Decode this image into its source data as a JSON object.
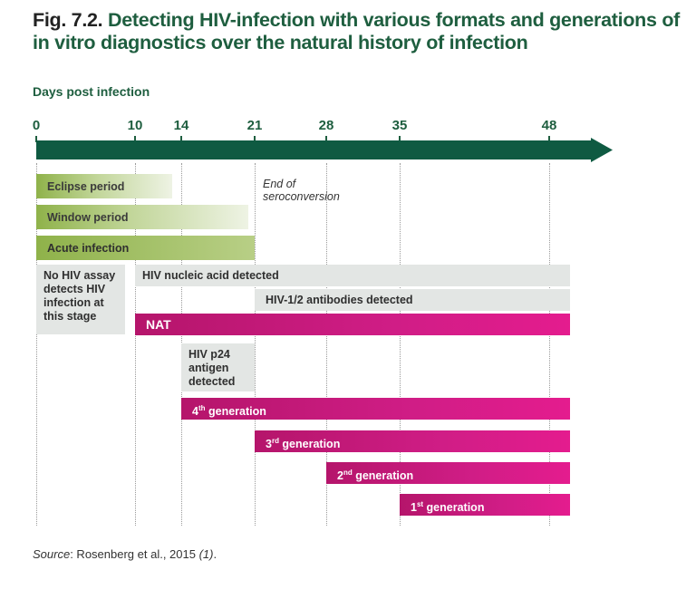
{
  "figure": {
    "number": "Fig. 7.2.",
    "title": "Detecting HIV-infection with various formats and generations of in vitro diagnostics over the natural history of infection"
  },
  "source": {
    "label": "Source",
    "text": ": Rosenberg et al., 2015 ",
    "ref": "(1)",
    "end": "."
  },
  "colors": {
    "title_green": "#1e5e3f",
    "arrow_green": "#0f5a42",
    "phase_green": "#8fb24a",
    "assay_grey": "#e3e6e4",
    "test_magenta": "#d01d86"
  },
  "chart_data": {
    "type": "timeline",
    "xlabel": "Days post infection",
    "x_ticks": [
      0,
      10,
      14,
      21,
      28,
      35,
      48
    ],
    "xlim": [
      0,
      54
    ],
    "annotations": [
      {
        "text_line1": "End of",
        "text_line2": "seroconversion",
        "day": 21
      }
    ],
    "bars": [
      {
        "id": "eclipse",
        "label": "Eclipse period",
        "start": 0,
        "end": 13.2,
        "style": "green"
      },
      {
        "id": "window",
        "label": "Window period",
        "start": 0,
        "end": 20.4,
        "style": "green"
      },
      {
        "id": "acute",
        "label": "Acute infection",
        "start": 0,
        "end": 21,
        "style": "green-solid"
      },
      {
        "id": "noassay",
        "label": "No HIV assay detects HIV infection at this stage",
        "start": 0,
        "end": 9,
        "style": "grey"
      },
      {
        "id": "nucleic",
        "label": "HIV nucleic acid detected",
        "start": 10,
        "end": 50,
        "style": "grey"
      },
      {
        "id": "antibody",
        "label": "HIV-1/2 antibodies detected",
        "start": 21,
        "end": 50,
        "style": "grey"
      },
      {
        "id": "nat",
        "label": "NAT",
        "start": 10,
        "end": 50,
        "style": "magenta"
      },
      {
        "id": "p24",
        "label": "HIV p24 antigen detected",
        "start": 14,
        "end": 21,
        "style": "grey"
      },
      {
        "id": "gen4",
        "label": "4",
        "sup": "th",
        "suffix": " generation",
        "start": 14,
        "end": 50,
        "style": "magenta"
      },
      {
        "id": "gen3",
        "label": "3",
        "sup": "rd",
        "suffix": " generation",
        "start": 21,
        "end": 50,
        "style": "magenta"
      },
      {
        "id": "gen2",
        "label": "2",
        "sup": "nd",
        "suffix": " generation",
        "start": 28,
        "end": 50,
        "style": "magenta"
      },
      {
        "id": "gen1",
        "label": "1",
        "sup": "st",
        "suffix": " generation",
        "start": 35,
        "end": 50,
        "style": "magenta"
      }
    ]
  }
}
